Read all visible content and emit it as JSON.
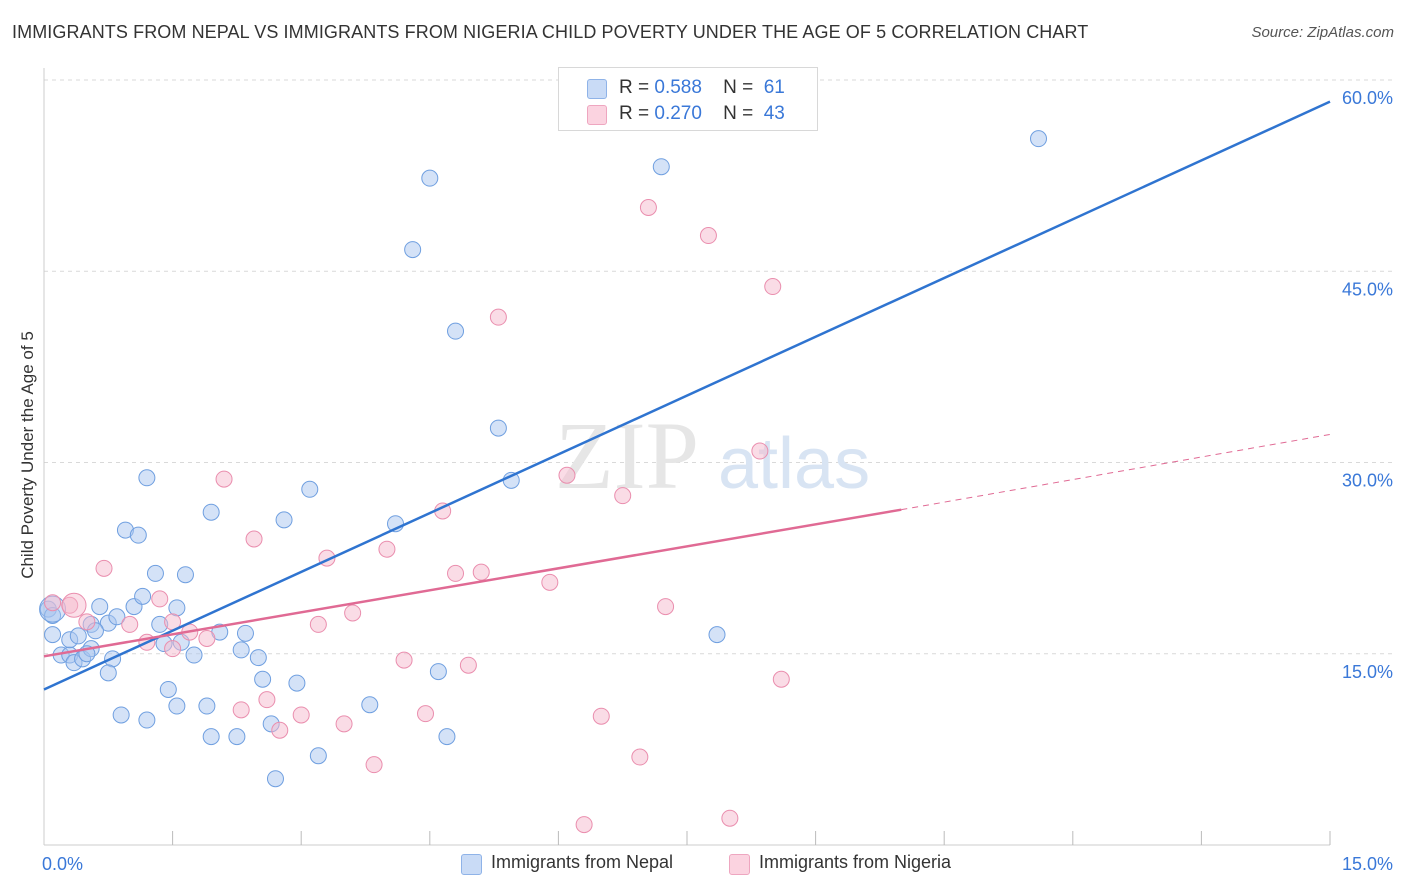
{
  "title": "IMMIGRANTS FROM NEPAL VS IMMIGRANTS FROM NIGERIA CHILD POVERTY UNDER THE AGE OF 5 CORRELATION CHART",
  "source": "Source: ZipAtlas.com",
  "watermark": {
    "zip": "ZIP",
    "atlas": "atlas"
  },
  "legend_top": [
    {
      "r_label": "R =",
      "r_value": "0.588",
      "n_label": "N =",
      "n_value": "61",
      "color": "#a9c6f0"
    },
    {
      "r_label": "R =",
      "r_value": "0.270",
      "n_label": "N =",
      "n_value": "43",
      "color": "#f6b9cd"
    }
  ],
  "colors": {
    "nepal_fill": "#a9c6f0",
    "nepal_stroke": "#6f9fe0",
    "nepal_line": "#2f74d0",
    "nigeria_fill": "#f6b9cd",
    "nigeria_stroke": "#ea8eae",
    "nigeria_line": "#e06a94",
    "tick_label": "#3a78d8",
    "grid": "#d9d9d9"
  },
  "chart_data": {
    "type": "scatter",
    "title": "IMMIGRANTS FROM NEPAL VS IMMIGRANTS FROM NIGERIA CHILD POVERTY UNDER THE AGE OF 5 CORRELATION CHART",
    "xlabel": "",
    "ylabel": "Child Poverty Under the Age of 5",
    "xlim": [
      0,
      15
    ],
    "ylim": [
      0,
      60
    ],
    "x_tick_labels": [
      "0.0%",
      "15.0%"
    ],
    "y_ticks": [
      15,
      30,
      45,
      60
    ],
    "y_tick_labels": [
      "15.0%",
      "30.0%",
      "45.0%",
      "60.0%"
    ],
    "grid": true,
    "legend_position": "top-center",
    "series": [
      {
        "name": "Immigrants from Nepal",
        "points": [
          [
            0.05,
            18.5
          ],
          [
            0.1,
            18.0
          ],
          [
            0.1,
            16.5
          ],
          [
            0.2,
            14.9
          ],
          [
            0.3,
            14.9
          ],
          [
            0.35,
            14.3
          ],
          [
            0.45,
            14.6
          ],
          [
            0.3,
            16.1
          ],
          [
            0.4,
            16.4
          ],
          [
            0.55,
            15.4
          ],
          [
            0.55,
            17.3
          ],
          [
            0.65,
            18.7
          ],
          [
            0.75,
            17.4
          ],
          [
            0.85,
            17.9
          ],
          [
            0.8,
            14.6
          ],
          [
            0.75,
            13.5
          ],
          [
            0.95,
            24.7
          ],
          [
            1.1,
            24.3
          ],
          [
            1.2,
            28.8
          ],
          [
            1.05,
            18.7
          ],
          [
            1.3,
            21.3
          ],
          [
            1.35,
            17.3
          ],
          [
            1.45,
            12.2
          ],
          [
            1.55,
            18.6
          ],
          [
            1.65,
            21.2
          ],
          [
            1.6,
            15.9
          ],
          [
            1.75,
            14.9
          ],
          [
            1.95,
            26.1
          ],
          [
            2.05,
            16.7
          ],
          [
            2.3,
            15.3
          ],
          [
            2.35,
            16.6
          ],
          [
            2.5,
            14.7
          ],
          [
            2.55,
            13.0
          ],
          [
            2.65,
            9.5
          ],
          [
            2.8,
            25.5
          ],
          [
            2.95,
            12.7
          ],
          [
            3.1,
            27.9
          ],
          [
            3.2,
            7.0
          ],
          [
            3.8,
            11.0
          ],
          [
            4.1,
            25.2
          ],
          [
            4.3,
            46.7
          ],
          [
            4.5,
            52.3
          ],
          [
            4.6,
            13.6
          ],
          [
            4.7,
            8.5
          ],
          [
            4.8,
            40.3
          ],
          [
            5.3,
            32.7
          ],
          [
            5.45,
            28.6
          ],
          [
            7.2,
            53.2
          ],
          [
            7.85,
            16.5
          ],
          [
            11.6,
            55.4
          ],
          [
            1.15,
            19.5
          ],
          [
            0.9,
            10.2
          ],
          [
            1.2,
            9.8
          ],
          [
            1.55,
            10.9
          ],
          [
            1.9,
            10.9
          ],
          [
            1.95,
            8.5
          ],
          [
            2.25,
            8.5
          ],
          [
            2.7,
            5.2
          ],
          [
            0.6,
            16.8
          ],
          [
            1.4,
            15.8
          ],
          [
            0.5,
            15.0
          ]
        ]
      },
      {
        "name": "Immigrants from Nigeria",
        "points": [
          [
            0.1,
            19.0
          ],
          [
            0.3,
            18.8
          ],
          [
            0.5,
            17.5
          ],
          [
            0.7,
            21.7
          ],
          [
            1.0,
            17.3
          ],
          [
            1.2,
            15.9
          ],
          [
            1.35,
            19.3
          ],
          [
            1.5,
            15.4
          ],
          [
            1.7,
            16.7
          ],
          [
            1.9,
            16.2
          ],
          [
            2.1,
            28.7
          ],
          [
            2.3,
            10.6
          ],
          [
            2.45,
            24.0
          ],
          [
            2.6,
            11.4
          ],
          [
            2.75,
            9.0
          ],
          [
            3.0,
            10.2
          ],
          [
            3.2,
            17.3
          ],
          [
            3.3,
            22.5
          ],
          [
            3.5,
            9.5
          ],
          [
            3.6,
            18.2
          ],
          [
            3.85,
            6.3
          ],
          [
            4.0,
            23.2
          ],
          [
            4.2,
            14.5
          ],
          [
            4.45,
            10.3
          ],
          [
            4.65,
            26.2
          ],
          [
            4.8,
            21.3
          ],
          [
            4.95,
            14.1
          ],
          [
            5.1,
            21.4
          ],
          [
            5.3,
            41.4
          ],
          [
            5.9,
            20.6
          ],
          [
            6.1,
            29.0
          ],
          [
            6.3,
            1.6
          ],
          [
            6.5,
            10.1
          ],
          [
            6.75,
            27.4
          ],
          [
            6.95,
            6.9
          ],
          [
            7.05,
            50.0
          ],
          [
            7.25,
            18.7
          ],
          [
            7.75,
            47.8
          ],
          [
            8.0,
            2.1
          ],
          [
            8.35,
            30.9
          ],
          [
            8.5,
            43.8
          ],
          [
            8.6,
            13.0
          ],
          [
            1.5,
            17.5
          ]
        ]
      }
    ],
    "trend_lines": [
      {
        "name": "Immigrants from Nepal",
        "x": [
          0,
          15
        ],
        "y": [
          12.2,
          58.3
        ],
        "style": "solid"
      },
      {
        "name": "Immigrants from Nigeria",
        "x": [
          0,
          10.0
        ],
        "y": [
          14.8,
          26.3
        ],
        "style": "solid"
      },
      {
        "name": "Immigrants from Nigeria",
        "x": [
          10.0,
          15
        ],
        "y": [
          26.3,
          32.2
        ],
        "style": "dashed"
      }
    ]
  }
}
